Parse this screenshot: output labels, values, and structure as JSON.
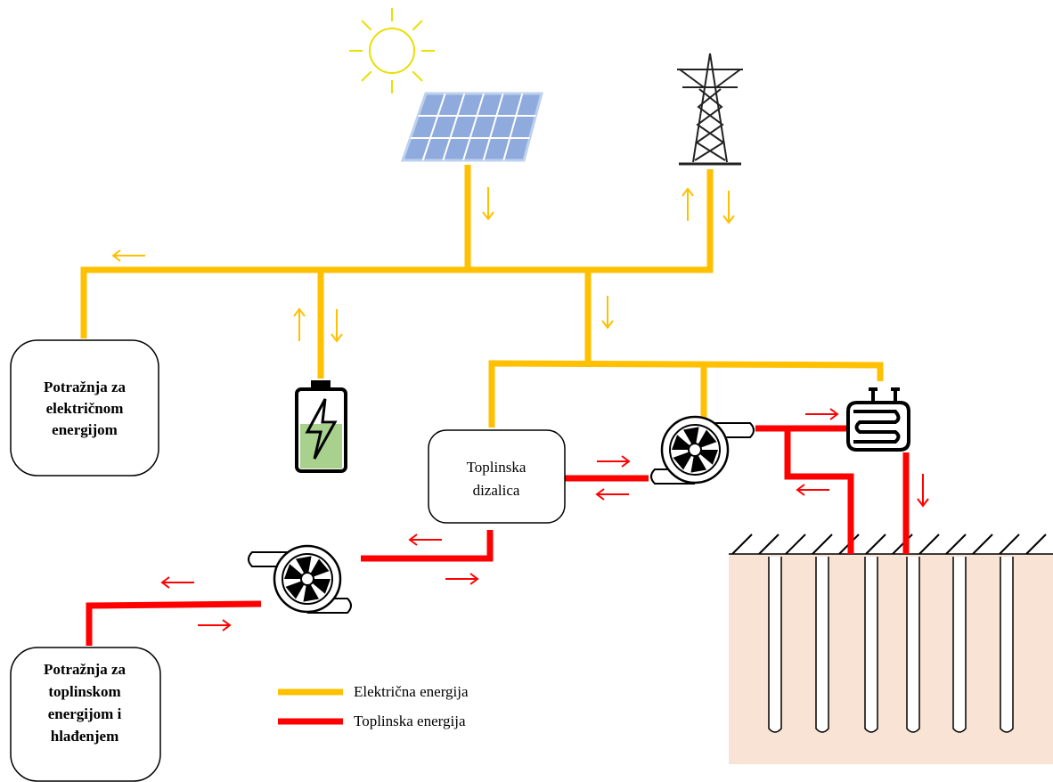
{
  "nodes": [
    {
      "lines": [
        "Potražnja za",
        "električnom",
        "energijom"
      ]
    },
    {
      "lines": [
        "Toplinska",
        "dizalica"
      ]
    },
    {
      "lines": [
        "Potražnja za",
        "toplinskom",
        "energijom i",
        "hlađenjem"
      ]
    }
  ],
  "legend": [
    {
      "label": "Električna energija"
    },
    {
      "label": "Toplinska energija"
    }
  ]
}
